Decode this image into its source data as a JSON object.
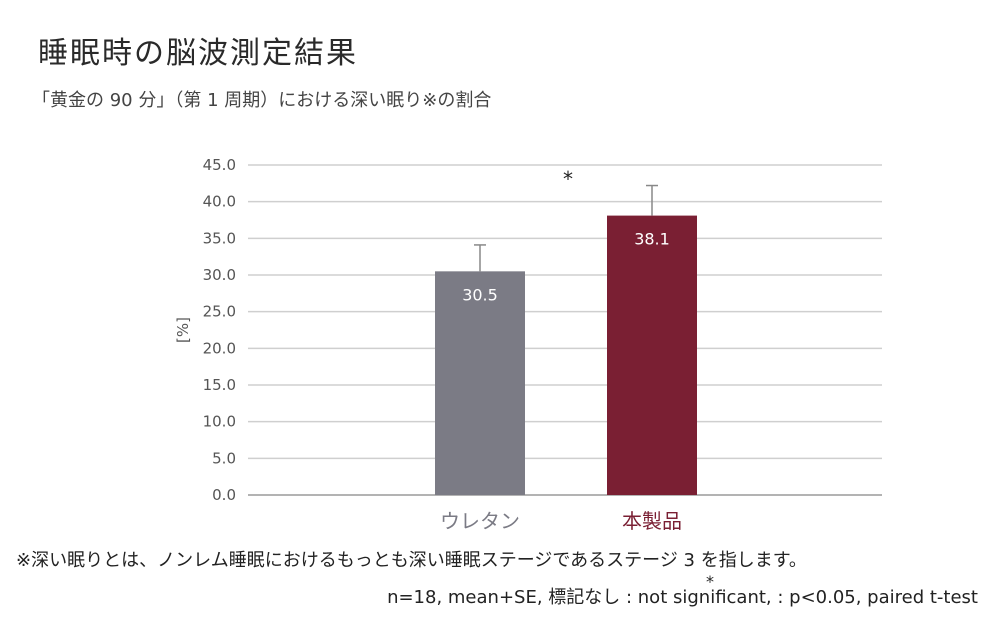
{
  "title": "睡眠時の脳波測定結果",
  "subtitle": "「黄金の 90 分」（第 1 周期）における深い眠り※の割合",
  "chart_data": {
    "type": "bar",
    "categories": [
      "ウレタン",
      "本製品"
    ],
    "values": [
      30.5,
      38.1
    ],
    "errors": [
      3.6,
      4.1
    ],
    "data_labels": [
      "30.5",
      "38.1"
    ],
    "colors": [
      "#7b7b85",
      "#7a1f33"
    ],
    "category_label_colors": [
      "#7b7b85",
      "#7a1f33"
    ],
    "ylabel": "[%]",
    "ylim": [
      0,
      45
    ],
    "yticks": [
      "0.0",
      "5.0",
      "10.0",
      "15.0",
      "20.0",
      "25.0",
      "30.0",
      "35.0",
      "40.0",
      "45.0"
    ],
    "grid": true,
    "significance_marker": "*"
  },
  "footnote": "※深い眠りとは、ノンレム睡眠におけるもっとも深い睡眠ステージであるステージ 3 を指します。",
  "stats_note": "n=18, mean+SE, 標記なし : not significant,   : p<0.05, paired t-test",
  "stats_marker": "*"
}
